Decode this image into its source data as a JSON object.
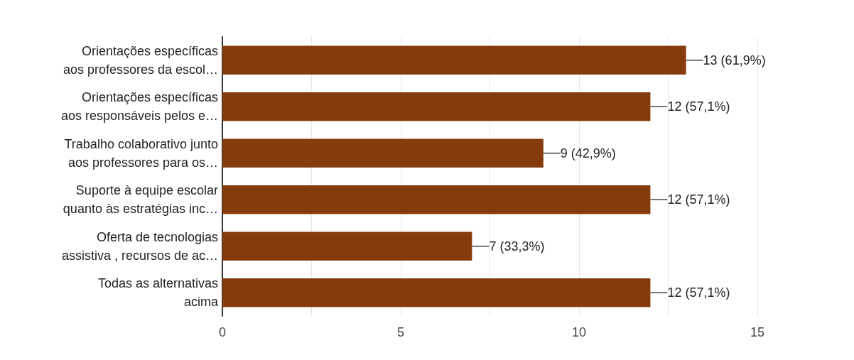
{
  "chart_data": {
    "type": "bar",
    "orientation": "horizontal",
    "categories": [
      "Orientações específicas\naos professores da escol…",
      "Orientações específicas\naos responsáveis pelos e…",
      "Trabalho colaborativo junto\naos professores para os…",
      "Suporte à equipe escolar\nquanto às estratégias inc…",
      "Oferta de tecnologias\nassistiva , recursos de ac…",
      "Todas as alternativas\nacima"
    ],
    "values": [
      13,
      12,
      9,
      12,
      7,
      12
    ],
    "value_labels": [
      "13 (61,9%)",
      "12 (57,1%)",
      "9 (42,9%)",
      "12 (57,1%)",
      "7 (33,3%)",
      "12 (57,1%)"
    ],
    "color": "#843c0c",
    "xlim": [
      0,
      15
    ],
    "xticks": [
      0,
      {
        "value": 2.5,
        "label": null
      },
      5,
      {
        "value": 7.5,
        "label": null
      },
      10,
      {
        "value": 12.5,
        "label": null
      },
      15
    ],
    "grid": "x"
  }
}
